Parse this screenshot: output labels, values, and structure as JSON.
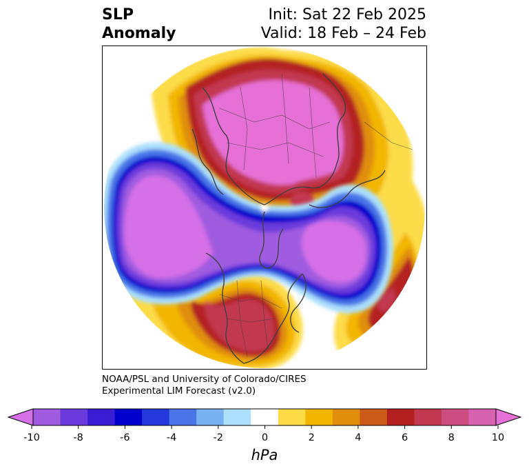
{
  "header": {
    "title_line1": "SLP",
    "title_line2": "Anomaly",
    "init": "Init: Sat 22 Feb 2025",
    "valid": "Valid: 18 Feb – 24 Feb"
  },
  "credit": {
    "line1": "NOAA/PSL and University of Colorado/CIRES",
    "line2": "Experimental LIM Forecast (v2.0)"
  },
  "colorbar": {
    "units": "hPa",
    "ticks": [
      "-10",
      "-8",
      "-6",
      "-4",
      "-2",
      "0",
      "2",
      "4",
      "6",
      "8",
      "10"
    ],
    "colors": [
      "#d670e8",
      "#a05ce0",
      "#6a3adc",
      "#3a1cd4",
      "#0000cc",
      "#2438dc",
      "#4a74e8",
      "#78b0f0",
      "#ace0fc",
      "#ffffff",
      "#fddc48",
      "#f2b600",
      "#e08e0c",
      "#cc5a18",
      "#b42020",
      "#c23850",
      "#cc4e80",
      "#d862b2",
      "#e670d6"
    ]
  },
  "map": {
    "colors": {
      "neg_deep": "#d670e8",
      "neg_purple": "#a05ce0",
      "neg_indigo": "#6a3adc",
      "neg_blue": "#0000cc",
      "neg_mid": "#4a74e8",
      "neg_light": "#ace0fc",
      "pos_yellow": "#fddc48",
      "pos_gold": "#f2b600",
      "pos_orange": "#e08e0c",
      "pos_red": "#b42020",
      "pos_crimson": "#c23850",
      "pos_magenta": "#e670d6",
      "coast": "#404040"
    }
  }
}
